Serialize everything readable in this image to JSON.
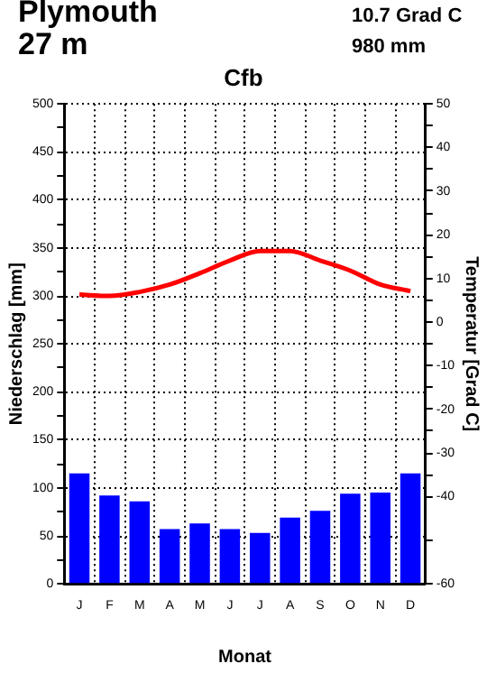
{
  "chart_data": {
    "type": "bar",
    "title": "Cfb",
    "xlabel": "Monat",
    "ylabel": "Niederschlag [mm]",
    "y2label": "Temperatur [Grad C]",
    "annotations": [
      "Plymouth",
      "27 m",
      "10.7 Grad C",
      "980 mm"
    ],
    "categories": [
      "J",
      "F",
      "M",
      "A",
      "M",
      "J",
      "J",
      "A",
      "S",
      "O",
      "N",
      "D"
    ],
    "series": [
      {
        "color": "#0000ff",
        "values": [
          115,
          92,
          86,
          57,
          63,
          57,
          53,
          69,
          76,
          94,
          95,
          115
        ]
      },
      {
        "type": "line",
        "axis": "y2",
        "color": "#ff0000",
        "values": [
          6.3,
          6.0,
          6.9,
          8.6,
          11.2,
          14.1,
          16.3,
          16.3,
          14.1,
          11.8,
          8.6,
          7.1
        ]
      }
    ],
    "ylim": [
      0,
      500
    ],
    "yticks": [
      0,
      {
        "value": 25,
        "label": null
      },
      50,
      {
        "value": 75,
        "label": null
      },
      100,
      {
        "value": 125,
        "label": null
      },
      150,
      {
        "value": 175,
        "label": null
      },
      200,
      {
        "value": 225,
        "label": null
      },
      250,
      {
        "value": 275,
        "label": null
      },
      300,
      {
        "value": 325,
        "label": null
      },
      350,
      {
        "value": 375,
        "label": null
      },
      400,
      {
        "value": 425,
        "label": null
      },
      450,
      {
        "value": 475,
        "label": null
      },
      500
    ],
    "y2lim": [
      -60,
      50
    ],
    "y2ticks": [
      -60,
      {
        "value": -50,
        "label": null
      },
      -40,
      {
        "value": -35,
        "label": null
      },
      -30,
      {
        "value": -25,
        "label": null
      },
      -20,
      {
        "value": -15,
        "label": null
      },
      -10,
      {
        "value": -5,
        "label": null
      },
      0,
      {
        "value": 5,
        "label": null
      },
      10,
      {
        "value": 15,
        "label": null
      },
      20,
      {
        "value": 25,
        "label": null
      },
      30,
      {
        "value": 35,
        "label": null
      },
      40,
      {
        "value": 45,
        "label": null
      },
      50
    ],
    "grid": true,
    "legend": false,
    "marker": "none",
    "line_style": "solid"
  }
}
